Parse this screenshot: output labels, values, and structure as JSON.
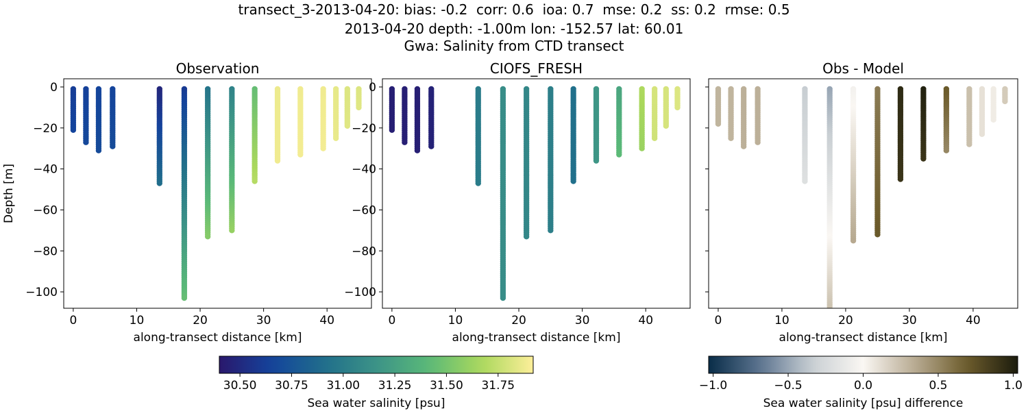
{
  "figure": {
    "title_lines": [
      "transect_3-2013-04-20: bias: -0.2  corr: 0.6  ioa: 0.7  mse: 0.2  ss: 0.2  rmse: 0.5",
      "2013-04-20 depth: -1.00m lon: -152.57 lat: 60.01",
      "Gwa: Salinity from CTD transect"
    ]
  },
  "colormaps": {
    "haline": [
      "#2a186c",
      "#14439c",
      "#206e8b",
      "#3c9387",
      "#5ab978",
      "#aad85c",
      "#fdef9a"
    ],
    "diff": [
      "#092d48",
      "#5c7490",
      "#c9cfd3",
      "#faf7f3",
      "#b8ab92",
      "#6d5c2c",
      "#1b1c0d"
    ]
  },
  "chart_data": [
    {
      "type": "scatter",
      "title": "Observation",
      "xlabel": "along-transect distance [km]",
      "ylabel": "Depth [m]",
      "xlim": [
        -1.5,
        47.0
      ],
      "ylim": [
        -108,
        4
      ],
      "xticks": [
        0,
        10,
        20,
        30,
        40
      ],
      "yticks": [
        0,
        -20,
        -40,
        -60,
        -80,
        -100
      ],
      "colormap": "haline",
      "clim": [
        30.4,
        31.92
      ],
      "profiles": [
        {
          "x": 0.0,
          "depth": 21,
          "top": 30.62,
          "bottom": 30.66
        },
        {
          "x": 2.0,
          "depth": 27,
          "top": 30.64,
          "bottom": 30.68
        },
        {
          "x": 4.0,
          "depth": 31,
          "top": 30.66,
          "bottom": 30.7
        },
        {
          "x": 6.2,
          "depth": 29,
          "top": 30.66,
          "bottom": 30.7
        },
        {
          "x": 13.6,
          "depth": 47,
          "top": 30.48,
          "bottom": 30.9
        },
        {
          "x": 17.5,
          "depth": 103,
          "top": 30.6,
          "bottom": 31.45
        },
        {
          "x": 21.2,
          "depth": 73,
          "top": 30.95,
          "bottom": 31.55
        },
        {
          "x": 25.0,
          "depth": 70,
          "top": 31.05,
          "bottom": 31.6
        },
        {
          "x": 28.6,
          "depth": 46,
          "top": 31.45,
          "bottom": 31.7
        },
        {
          "x": 32.2,
          "depth": 36,
          "top": 31.87,
          "bottom": 31.88
        },
        {
          "x": 35.8,
          "depth": 33,
          "top": 31.88,
          "bottom": 31.89
        },
        {
          "x": 39.4,
          "depth": 30,
          "top": 31.88,
          "bottom": 31.89
        },
        {
          "x": 41.4,
          "depth": 25,
          "top": 31.85,
          "bottom": 31.86
        },
        {
          "x": 43.2,
          "depth": 19,
          "top": 31.82,
          "bottom": 31.83
        },
        {
          "x": 45.0,
          "depth": 10,
          "top": 31.82,
          "bottom": 31.83
        }
      ]
    },
    {
      "type": "scatter",
      "title": "CIOFS_FRESH",
      "xlabel": "along-transect distance [km]",
      "ylabel": "",
      "xlim": [
        -1.5,
        47.0
      ],
      "ylim": [
        -108,
        4
      ],
      "xticks": [
        0,
        10,
        20,
        30,
        40
      ],
      "yticks": [
        0,
        -20,
        -40,
        -60,
        -80,
        -100
      ],
      "colormap": "haline",
      "clim": [
        30.4,
        31.92
      ],
      "profiles": [
        {
          "x": 0.0,
          "depth": 21,
          "top": 30.44,
          "bottom": 30.44
        },
        {
          "x": 2.0,
          "depth": 27,
          "top": 30.44,
          "bottom": 30.44
        },
        {
          "x": 4.0,
          "depth": 31,
          "top": 30.44,
          "bottom": 30.44
        },
        {
          "x": 6.2,
          "depth": 29,
          "top": 30.46,
          "bottom": 30.46
        },
        {
          "x": 13.6,
          "depth": 47,
          "top": 31.0,
          "bottom": 31.0
        },
        {
          "x": 17.5,
          "depth": 103,
          "top": 31.12,
          "bottom": 31.12
        },
        {
          "x": 21.2,
          "depth": 73,
          "top": 31.08,
          "bottom": 31.08
        },
        {
          "x": 25.0,
          "depth": 70,
          "top": 31.02,
          "bottom": 31.02
        },
        {
          "x": 28.6,
          "depth": 46,
          "top": 30.92,
          "bottom": 30.92
        },
        {
          "x": 32.2,
          "depth": 36,
          "top": 31.18,
          "bottom": 31.18
        },
        {
          "x": 35.8,
          "depth": 33,
          "top": 31.28,
          "bottom": 31.42
        },
        {
          "x": 39.4,
          "depth": 30,
          "top": 31.68,
          "bottom": 31.62
        },
        {
          "x": 41.4,
          "depth": 25,
          "top": 31.8,
          "bottom": 31.78
        },
        {
          "x": 43.2,
          "depth": 19,
          "top": 31.8,
          "bottom": 31.8
        },
        {
          "x": 45.0,
          "depth": 10,
          "top": 31.82,
          "bottom": 31.82
        }
      ]
    },
    {
      "type": "scatter",
      "title": "Obs - Model",
      "xlabel": "along-transect distance [km]",
      "ylabel": "",
      "xlim": [
        -1.5,
        47.0
      ],
      "ylim": [
        -108,
        4
      ],
      "xticks": [
        0,
        10,
        20,
        30,
        40
      ],
      "yticks": [
        0,
        -20,
        -40,
        -60,
        -80,
        -100
      ],
      "show_yticklabels": false,
      "colormap": "diff",
      "clim": [
        -1.03,
        1.03
      ],
      "profiles": [
        {
          "x": 0.0,
          "depth": 18,
          "top": 0.3,
          "bottom": 0.3
        },
        {
          "x": 2.0,
          "depth": 25,
          "top": 0.3,
          "bottom": 0.3
        },
        {
          "x": 4.0,
          "depth": 29,
          "top": 0.32,
          "bottom": 0.32
        },
        {
          "x": 6.2,
          "depth": 27,
          "top": 0.32,
          "bottom": 0.32
        },
        {
          "x": 13.6,
          "depth": 46,
          "top": -0.35,
          "bottom": -0.2
        },
        {
          "x": 17.5,
          "depth": 110,
          "top": -0.5,
          "bottom": 0.25
        },
        {
          "x": 21.2,
          "depth": 75,
          "top": -0.05,
          "bottom": 0.35
        },
        {
          "x": 25.0,
          "depth": 72,
          "top": 0.55,
          "bottom": 0.7
        },
        {
          "x": 28.6,
          "depth": 45,
          "top": 0.95,
          "bottom": 0.9
        },
        {
          "x": 32.2,
          "depth": 35,
          "top": 1.0,
          "bottom": 0.9
        },
        {
          "x": 35.8,
          "depth": 31,
          "top": 0.7,
          "bottom": 0.5
        },
        {
          "x": 39.4,
          "depth": 28,
          "top": 0.25,
          "bottom": 0.25
        },
        {
          "x": 41.4,
          "depth": 23,
          "top": 0.1,
          "bottom": 0.1
        },
        {
          "x": 43.2,
          "depth": 16,
          "top": 0.05,
          "bottom": 0.05
        },
        {
          "x": 45.0,
          "depth": 7,
          "top": 0.2,
          "bottom": 0.2
        }
      ]
    }
  ],
  "colorbars": [
    {
      "label": "Sea water salinity [psu]",
      "colormap": "haline",
      "range": [
        30.4,
        31.92
      ],
      "ticks": [
        "30.50",
        "30.75",
        "31.00",
        "31.25",
        "31.50",
        "31.75"
      ],
      "tick_values": [
        30.5,
        30.75,
        31.0,
        31.25,
        31.5,
        31.75
      ]
    },
    {
      "label": "Sea water salinity [psu] difference",
      "colormap": "diff",
      "range": [
        -1.03,
        1.03
      ],
      "ticks": [
        "−1.0",
        "−0.5",
        "0.0",
        "0.5",
        "1.0"
      ],
      "tick_values": [
        -1.0,
        -0.5,
        0.0,
        0.5,
        1.0
      ]
    }
  ]
}
